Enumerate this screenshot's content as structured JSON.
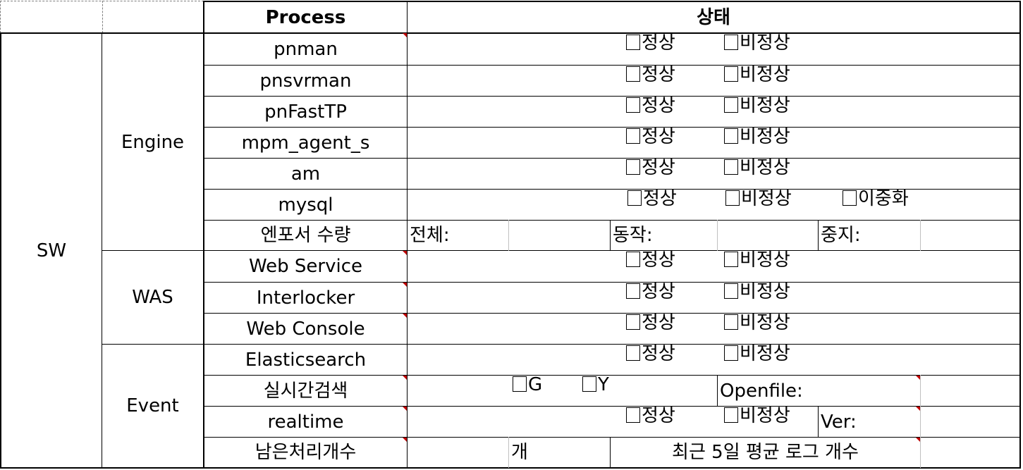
{
  "header": {
    "process": "Process",
    "status": "상태"
  },
  "section": "SW",
  "groups": {
    "engine": "Engine",
    "was": "WAS",
    "event": "Event"
  },
  "status_options": {
    "normal": "정상",
    "abnormal": "비정상",
    "redundant": "이중화"
  },
  "rows": {
    "pnman": "pnman",
    "pnsvrman": "pnsvrman",
    "pnfasttp": "pnFastTP",
    "mpm_agent_s": "mpm_agent_s",
    "am": "am",
    "mysql": "mysql",
    "enposer": "엔포서 수량",
    "web_service": "Web Service",
    "interlocker": "Interlocker",
    "web_console": "Web Console",
    "elasticsearch": "Elasticsearch",
    "realtime_search": "실시간검색",
    "realtime": "realtime",
    "remaining": "남은처리개수"
  },
  "enposer_labels": {
    "total": "전체:",
    "active": "동작:",
    "stopped": "중지:"
  },
  "search_options": {
    "g": "G",
    "y": "Y",
    "openfile": "Openfile:"
  },
  "realtime_ver": "Ver:",
  "remaining_labels": {
    "unit": "개",
    "avg_log": "최근 5일 평균 로그 개수"
  }
}
